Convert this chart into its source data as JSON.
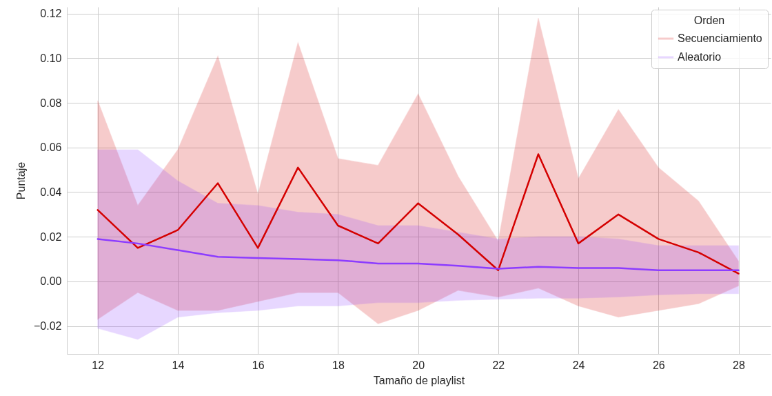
{
  "chart_data": {
    "type": "line",
    "xlabel": "Tamaño de playlist",
    "ylabel": "Puntaje",
    "legend_title": "Orden",
    "legend": "top right",
    "grid": true,
    "x": [
      12,
      13,
      14,
      15,
      16,
      17,
      18,
      19,
      20,
      21,
      22,
      23,
      24,
      25,
      26,
      27,
      28
    ],
    "series": [
      {
        "name": "Secuenciamiento",
        "color": "#d40000",
        "values": [
          0.032,
          0.015,
          0.023,
          0.044,
          0.015,
          0.051,
          0.025,
          0.017,
          0.035,
          0.021,
          0.005,
          0.057,
          0.017,
          0.03,
          0.019,
          0.013,
          0.0035
        ],
        "lower": [
          -0.017,
          -0.005,
          -0.013,
          -0.013,
          -0.009,
          -0.005,
          -0.005,
          -0.019,
          -0.013,
          -0.004,
          -0.007,
          -0.003,
          -0.011,
          -0.016,
          -0.013,
          -0.01,
          -0.002
        ],
        "upper": [
          0.081,
          0.034,
          0.059,
          0.101,
          0.039,
          0.107,
          0.055,
          0.052,
          0.084,
          0.047,
          0.018,
          0.118,
          0.046,
          0.077,
          0.051,
          0.036,
          0.009
        ]
      },
      {
        "name": "Aleatorio",
        "color": "#8c3cff",
        "values": [
          0.019,
          0.017,
          0.014,
          0.011,
          0.0105,
          0.01,
          0.0095,
          0.008,
          0.008,
          0.007,
          0.0057,
          0.0065,
          0.006,
          0.006,
          0.005,
          0.005,
          0.005
        ],
        "lower": [
          -0.021,
          -0.026,
          -0.016,
          -0.014,
          -0.013,
          -0.011,
          -0.011,
          -0.0095,
          -0.0095,
          -0.0085,
          -0.008,
          -0.0075,
          -0.0075,
          -0.007,
          -0.006,
          -0.0055,
          -0.0055
        ],
        "upper": [
          0.059,
          0.059,
          0.045,
          0.035,
          0.034,
          0.031,
          0.03,
          0.025,
          0.025,
          0.022,
          0.019,
          0.02,
          0.02,
          0.019,
          0.016,
          0.016,
          0.016
        ]
      }
    ],
    "xlim": [
      11.23,
      28.8
    ],
    "ylim": [
      -0.0325,
      0.123
    ],
    "xticks": [
      12,
      14,
      16,
      18,
      20,
      22,
      24,
      26,
      28
    ],
    "yticks": [
      {
        "value": -0.02,
        "label": "−0.02"
      },
      {
        "value": 0,
        "label": "0.00"
      },
      {
        "value": 0.02,
        "label": "0.02"
      },
      {
        "value": 0.04,
        "label": "0.04"
      },
      {
        "value": 0.06,
        "label": "0.06"
      },
      {
        "value": 0.08,
        "label": "0.08"
      },
      {
        "value": 0.1,
        "label": "0.10"
      },
      {
        "value": 0.12,
        "label": "0.12"
      }
    ]
  }
}
